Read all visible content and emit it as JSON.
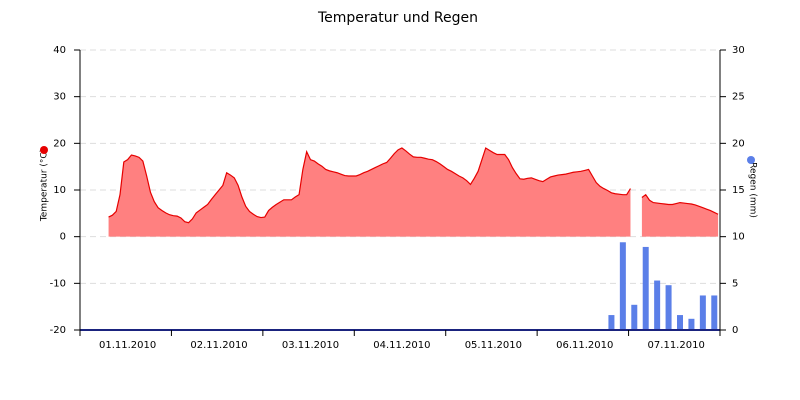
{
  "chart_data": {
    "type": "area_bar",
    "title": "Temperatur und Regen",
    "y_label": "Temperatur (°C)",
    "y2_label": "Regen (mm)",
    "categories": [
      null,
      null,
      null,
      null,
      null,
      null,
      null,
      null,
      null,
      null,
      null,
      null,
      "01.11.2010",
      null,
      null,
      null,
      null,
      null,
      null,
      null,
      null,
      null,
      null,
      null,
      null,
      null,
      null,
      null,
      null,
      null,
      null,
      null,
      null,
      null,
      null,
      null,
      "02.11.2010",
      null,
      null,
      null,
      null,
      null,
      null,
      null,
      null,
      null,
      null,
      null,
      null,
      null,
      null,
      null,
      null,
      null,
      null,
      null,
      null,
      null,
      null,
      null,
      "03.11.2010",
      null,
      null,
      null,
      null,
      null,
      null,
      null,
      null,
      null,
      null,
      null,
      null,
      null,
      null,
      null,
      null,
      null,
      null,
      null,
      null,
      null,
      null,
      null,
      "04.11.2010",
      null,
      null,
      null,
      null,
      null,
      null,
      null,
      null,
      null,
      null,
      null,
      null,
      null,
      null,
      null,
      null,
      null,
      null,
      null,
      null,
      null,
      null,
      null,
      "05.11.2010",
      null,
      null,
      null,
      null,
      null,
      null,
      null,
      null,
      null,
      null,
      null,
      null,
      null,
      null,
      null,
      null,
      null,
      null,
      null,
      null,
      null,
      null,
      null,
      "06.11.2010",
      null,
      null,
      null,
      null,
      null,
      null,
      null,
      null,
      null,
      null,
      null,
      null,
      null,
      null,
      null,
      null,
      null,
      null,
      null,
      null,
      null,
      null,
      null,
      "07.11.2010",
      null,
      null,
      null,
      null,
      null,
      null,
      null,
      null,
      null,
      null,
      null
    ],
    "series": [
      {
        "color": "#e60000",
        "fill": "#ff8080",
        "values": [
          null,
          null,
          null,
          null,
          null,
          null,
          null,
          4.2,
          4.6,
          5.4,
          9,
          16,
          16.5,
          17.5,
          17.3,
          17,
          16.2,
          13,
          9.5,
          7.5,
          6.2,
          5.6,
          5.1,
          4.7,
          4.5,
          4.4,
          4.0,
          3.2,
          3.0,
          3.8,
          5.1,
          5.7,
          6.3,
          6.9,
          8,
          9,
          10,
          11,
          13.7,
          13.2,
          12.6,
          11,
          8.5,
          6.5,
          5.4,
          4.8,
          4.3,
          4.1,
          4.2,
          5.6,
          6.3,
          6.9,
          7.4,
          7.9,
          7.9,
          7.9,
          8.5,
          9,
          14.4,
          18.2,
          16.5,
          16.2,
          15.6,
          15.1,
          14.4,
          14.1,
          13.9,
          13.7,
          13.4,
          13.1,
          13,
          13,
          13,
          13.3,
          13.7,
          14,
          14.4,
          14.8,
          15.2,
          15.6,
          15.9,
          16.8,
          17.8,
          18.6,
          19,
          18.4,
          17.7,
          17.1,
          17,
          17,
          16.8,
          16.6,
          16.5,
          16.1,
          15.6,
          15,
          14.4,
          14,
          13.5,
          13,
          12.6,
          12,
          11.2,
          12.5,
          14,
          16.5,
          19,
          18.5,
          18,
          17.6,
          17.6,
          17.6,
          16.5,
          14.8,
          13.5,
          12.4,
          12.3,
          12.5,
          12.6,
          12.3,
          12,
          11.8,
          12.3,
          12.8,
          13,
          13.2,
          13.3,
          13.4,
          13.6,
          13.8,
          13.9,
          14,
          14.2,
          14.4,
          13,
          11.6,
          10.8,
          10.3,
          9.9,
          9.4,
          9.2,
          9.1,
          9,
          9,
          10.3,
          null,
          null,
          8.4,
          9,
          7.8,
          7.3,
          7.2,
          7.1,
          7,
          6.9,
          6.9,
          7.1,
          7.3,
          7.2,
          7.1,
          7,
          6.8,
          6.5,
          6.2,
          5.9,
          5.6,
          5.2,
          4.8
        ]
      },
      {
        "color": "#5b7fe8",
        "axis": "y2",
        "values": [
          null,
          0,
          null,
          null,
          0,
          null,
          null,
          0,
          null,
          null,
          0,
          null,
          null,
          0,
          null,
          null,
          0,
          null,
          null,
          0,
          null,
          null,
          0,
          null,
          null,
          0,
          null,
          null,
          0,
          null,
          null,
          0,
          null,
          null,
          0,
          null,
          null,
          0,
          null,
          null,
          0,
          null,
          null,
          0,
          null,
          null,
          0,
          null,
          null,
          0,
          null,
          null,
          0,
          null,
          null,
          0,
          null,
          null,
          0,
          null,
          null,
          0,
          null,
          null,
          0,
          null,
          null,
          0,
          null,
          null,
          0,
          null,
          null,
          0,
          null,
          null,
          0,
          null,
          null,
          0,
          null,
          null,
          0,
          null,
          null,
          0,
          null,
          null,
          0,
          null,
          null,
          0,
          null,
          null,
          0,
          null,
          null,
          0,
          null,
          null,
          0,
          null,
          null,
          0,
          null,
          null,
          0,
          null,
          null,
          0,
          null,
          null,
          0,
          null,
          null,
          0,
          null,
          null,
          0,
          null,
          null,
          0,
          null,
          null,
          0,
          null,
          null,
          0,
          null,
          null,
          0,
          null,
          null,
          0,
          null,
          null,
          0,
          null,
          null,
          1.6,
          null,
          null,
          9.4,
          null,
          null,
          2.7,
          null,
          null,
          8.9,
          null,
          null,
          5.3,
          null,
          null,
          4.8,
          null,
          null,
          1.6,
          null,
          null,
          1.2,
          null,
          null,
          3.7,
          null,
          null,
          3.7,
          null
        ]
      }
    ],
    "ylim": [
      -20,
      40
    ],
    "yticks": [
      -20,
      -10,
      0,
      10,
      20,
      30,
      40
    ],
    "y2lim": [
      0,
      30
    ],
    "y2ticks": [
      0,
      5,
      10,
      15,
      20,
      25,
      30
    ],
    "grid": true
  }
}
